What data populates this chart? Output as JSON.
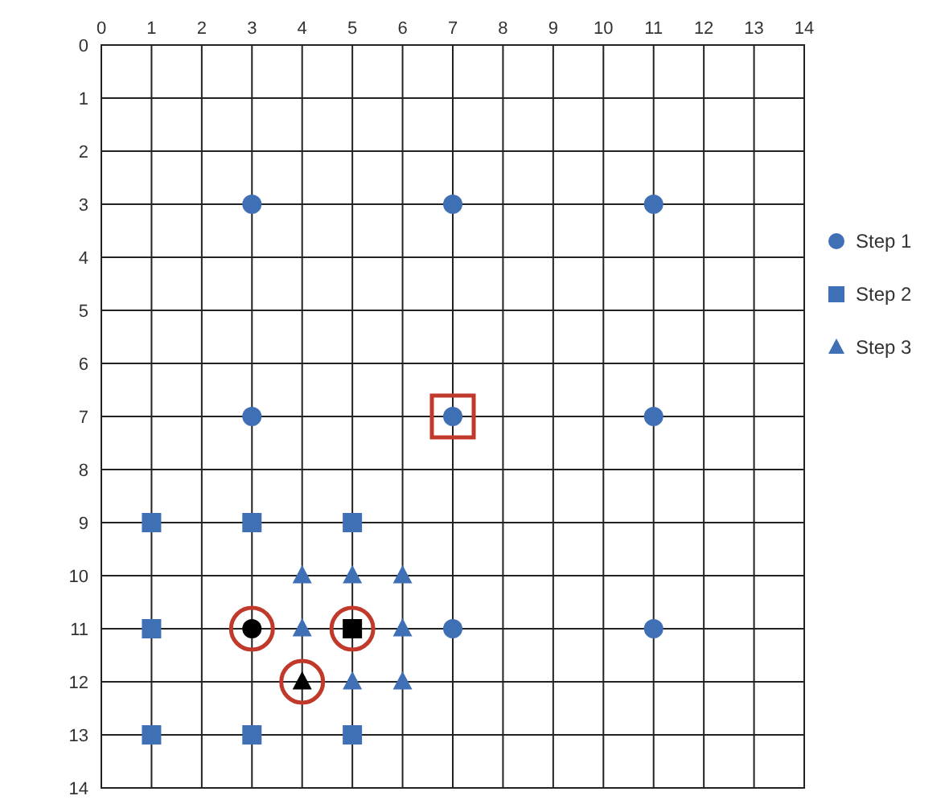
{
  "chart_data": {
    "type": "scatter",
    "xlim": [
      0,
      14
    ],
    "xticks": [
      0,
      1,
      2,
      3,
      4,
      5,
      6,
      7,
      8,
      9,
      10,
      11,
      12,
      13,
      14
    ],
    "ylim": [
      14,
      0
    ],
    "yticks": [
      0,
      1,
      2,
      3,
      4,
      5,
      6,
      7,
      8,
      9,
      10,
      11,
      12,
      13,
      14
    ],
    "grid": true,
    "legend": "right",
    "series": [
      {
        "name": "Step 1",
        "color": "#3f6fb5",
        "marker": "circle",
        "x": [
          3,
          7,
          11,
          3,
          7,
          11,
          7,
          11
        ],
        "values": [
          3,
          3,
          3,
          7,
          7,
          7,
          11,
          11
        ]
      },
      {
        "name": "Step 2",
        "color": "#3f6fb5",
        "marker": "square",
        "x": [
          1,
          3,
          5,
          1,
          1,
          3,
          5
        ],
        "values": [
          9,
          9,
          9,
          11,
          13,
          13,
          13
        ]
      },
      {
        "name": "Step 3",
        "color": "#3f6fb5",
        "marker": "triangle",
        "x": [
          4,
          5,
          6,
          4,
          6,
          5,
          6
        ],
        "values": [
          10,
          10,
          10,
          11,
          11,
          12,
          12
        ]
      },
      {
        "color": "#000000",
        "marker": "circle",
        "x": [
          3
        ],
        "values": [
          11
        ]
      },
      {
        "color": "#000000",
        "marker": "square",
        "x": [
          5
        ],
        "values": [
          11
        ]
      },
      {
        "color": "#000000",
        "marker": "triangle",
        "x": [
          4
        ],
        "values": [
          12
        ]
      },
      {
        "color": "#c0392b",
        "marker": "circle",
        "line_style": "solid",
        "x": [
          3,
          5,
          4
        ],
        "values": [
          11,
          11,
          12
        ]
      },
      {
        "color": "#c0392b",
        "marker": "square",
        "line_style": "solid",
        "x": [
          7
        ],
        "values": [
          7
        ]
      }
    ]
  }
}
